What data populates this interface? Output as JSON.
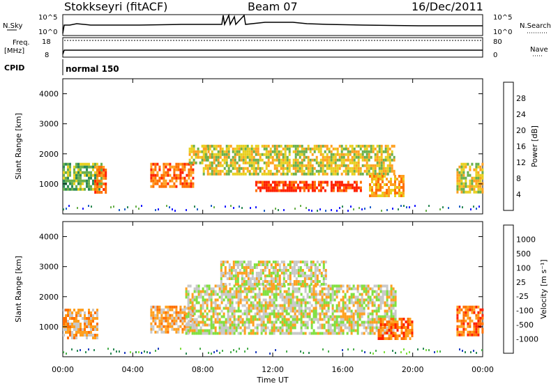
{
  "header": {
    "station": "Stokkseyri (fitACF)",
    "beam": "Beam 07",
    "date": "16/Dec/2011"
  },
  "top_strip": {
    "nsky_label": "N.Sky",
    "nsearch_label": "N.Search",
    "left_ticks": [
      "10^5",
      "10^0"
    ],
    "right_ticks": [
      "10^5",
      "10^0"
    ],
    "freq_label_line1": "Freq.",
    "freq_label_line2": "[MHz]",
    "freq_ticks": [
      "18",
      "8"
    ],
    "nave_label": "Nave",
    "nave_ticks": [
      "80",
      "0"
    ],
    "cpid_label": "CPID",
    "cpid_value": "normal 150"
  },
  "chart_data": [
    {
      "type": "heatmap",
      "panel": "power",
      "ylabel": "Slant Range [km]",
      "xlabel": "",
      "xlim": [
        "00:00",
        "24:00"
      ],
      "ylim": [
        0,
        4500
      ],
      "yticks": [
        "1000",
        "2000",
        "3000",
        "4000"
      ],
      "colorbar": {
        "label": "Power [dB]",
        "ticks": [
          "28",
          "24",
          "20",
          "16",
          "12",
          "8",
          "4"
        ],
        "colors": [
          "#1a1aff",
          "#2060c8",
          "#2e8b57",
          "#6ab04c",
          "#e8d020",
          "#ffa020",
          "#ff7000",
          "#ff2000"
        ]
      },
      "bands": [
        {
          "start_h": 0.0,
          "end_h": 2.2,
          "r_min": 800,
          "r_max": 1700,
          "level": 3
        },
        {
          "start_h": 1.8,
          "end_h": 2.4,
          "r_min": 700,
          "r_max": 1600,
          "level": 6
        },
        {
          "start_h": 5.0,
          "end_h": 7.5,
          "r_min": 900,
          "r_max": 1700,
          "level": 6
        },
        {
          "start_h": 7.2,
          "end_h": 8.5,
          "r_min": 1700,
          "r_max": 2300,
          "level": 4
        },
        {
          "start_h": 8.0,
          "end_h": 19.0,
          "r_min": 1300,
          "r_max": 2300,
          "level": 4
        },
        {
          "start_h": 11.0,
          "end_h": 17.0,
          "r_min": 800,
          "r_max": 1100,
          "level": 7
        },
        {
          "start_h": 17.5,
          "end_h": 19.5,
          "r_min": 600,
          "r_max": 1300,
          "level": 5
        },
        {
          "start_h": 22.5,
          "end_h": 24.0,
          "r_min": 700,
          "r_max": 1700,
          "level": 4
        }
      ]
    },
    {
      "type": "heatmap",
      "panel": "velocity",
      "ylabel": "Slant Range [km]",
      "xlabel": "Time UT",
      "xlim": [
        "00:00",
        "24:00"
      ],
      "ylim": [
        0,
        4500
      ],
      "yticks": [
        "1000",
        "2000",
        "3000",
        "4000"
      ],
      "xticks": [
        "00:00",
        "04:00",
        "08:00",
        "12:00",
        "16:00",
        "20:00",
        "00:00"
      ],
      "colorbar": {
        "label": "Velocity [m s⁻¹]",
        "ticks": [
          "1000",
          "500",
          "100",
          "25",
          "-25",
          "-100",
          "-500",
          "-1000"
        ],
        "colors": [
          "#2040c0",
          "#2e8b57",
          "#4caf50",
          "#80e040",
          "#c8c8c8",
          "#ffa020",
          "#ff7000",
          "#ff2000"
        ]
      },
      "bands": [
        {
          "start_h": 0.0,
          "end_h": 2.0,
          "r_min": 600,
          "r_max": 1600,
          "level": 5
        },
        {
          "start_h": 5.0,
          "end_h": 7.5,
          "r_min": 800,
          "r_max": 1700,
          "level": 5
        },
        {
          "start_h": 7.0,
          "end_h": 19.0,
          "r_min": 800,
          "r_max": 2400,
          "level": 4
        },
        {
          "start_h": 9.0,
          "end_h": 15.0,
          "r_min": 2400,
          "r_max": 3200,
          "level": 4
        },
        {
          "start_h": 18.0,
          "end_h": 20.0,
          "r_min": 600,
          "r_max": 1300,
          "level": 6
        },
        {
          "start_h": 22.5,
          "end_h": 24.0,
          "r_min": 700,
          "r_max": 1700,
          "level": 6
        }
      ]
    }
  ]
}
